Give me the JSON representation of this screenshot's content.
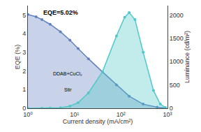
{
  "chart_data": {
    "type": "line",
    "log": "x",
    "grid": false,
    "xlabel": "Current density (mA/cm²)",
    "ylabel": "EQE (%)",
    "y2label": "Luminance (cd/m²)",
    "xlim": [
      1,
      1000
    ],
    "xticks": [
      {
        "value": 1,
        "label": "10⁰"
      },
      {
        "value": 10,
        "label": "10¹"
      },
      {
        "value": 100,
        "label": "10²"
      },
      {
        "value": 1000,
        "label": "10³"
      }
    ],
    "ylim": [
      0,
      5.5
    ],
    "yticks": [
      0,
      1,
      2,
      3,
      4,
      5
    ],
    "y2lim": [
      0,
      2200
    ],
    "y2ticks": [
      0,
      500,
      1000,
      1500,
      2000
    ],
    "annotations": [
      "EQE=5.02%",
      "DDAB+CuCl₂",
      "Stir"
    ],
    "series": [
      {
        "type": "area",
        "color": "#6080c0",
        "marker": "circle",
        "x": [
          1.0,
          1.5,
          2.0,
          3.0,
          5.0,
          8.0,
          12.0,
          20.0,
          40.0,
          80.0,
          150.0,
          300.0,
          600.0,
          900.0
        ],
        "values": [
          5.02,
          4.9,
          4.75,
          4.5,
          4.1,
          3.65,
          3.2,
          2.65,
          1.95,
          1.25,
          0.65,
          0.22,
          0.06,
          0.02
        ]
      },
      {
        "type": "area",
        "color": "#50c8c8",
        "marker": "circle",
        "axis": "y2",
        "x": [
          1.0,
          2.0,
          3.0,
          5.0,
          8.0,
          12.0,
          20.0,
          40.0,
          80.0,
          120.0,
          150.0,
          200.0,
          300.0,
          500.0,
          700.0,
          900.0
        ],
        "values": [
          0,
          1,
          3,
          12,
          45,
          120,
          330,
          780,
          1550,
          1950,
          2050,
          1900,
          1200,
          380,
          90,
          15
        ]
      }
    ]
  }
}
